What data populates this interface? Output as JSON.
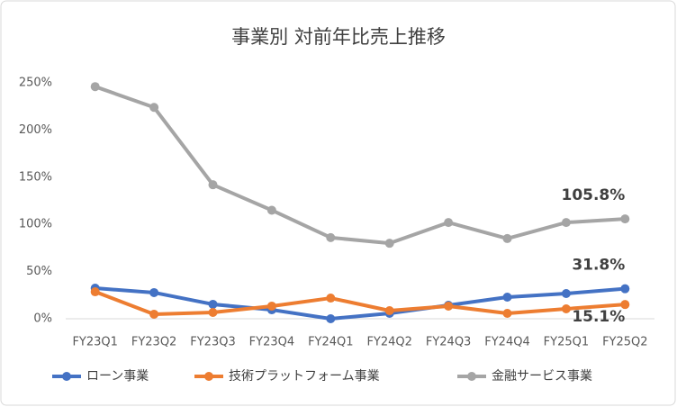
{
  "chart_data": {
    "type": "line",
    "title": "事業別 対前年比売上推移",
    "categories": [
      "FY23Q1",
      "FY23Q2",
      "FY23Q3",
      "FY23Q4",
      "FY24Q1",
      "FY24Q2",
      "FY24Q3",
      "FY24Q4",
      "FY25Q1",
      "FY25Q2"
    ],
    "series": [
      {
        "name": "ローン事業",
        "color": "#4472c4",
        "values": [
          32.4,
          27.7,
          15.3,
          9.5,
          0,
          5.7,
          14.3,
          22.9,
          26.7,
          31.8
        ],
        "value_labels": [
          null,
          null,
          null,
          null,
          null,
          null,
          null,
          null,
          null,
          "31.8%"
        ]
      },
      {
        "name": "技術プラットフォーム事業",
        "color": "#ed7d31",
        "values": [
          28.6,
          4.8,
          6.7,
          13.4,
          21.9,
          8.6,
          13.4,
          5.7,
          10.5,
          15.1
        ],
        "value_labels": [
          null,
          null,
          null,
          null,
          null,
          null,
          null,
          null,
          null,
          "15.1%"
        ]
      },
      {
        "name": "金融サービス事業",
        "color": "#a5a5a5",
        "values": [
          246,
          224,
          142,
          115,
          86,
          80,
          102,
          85,
          102,
          105.8
        ],
        "value_labels": [
          null,
          null,
          null,
          null,
          null,
          null,
          null,
          null,
          null,
          "105.8%"
        ]
      }
    ],
    "ylim": [
      0,
      250
    ],
    "yticks": [
      {
        "value": 0,
        "label": "0%"
      },
      {
        "value": 50,
        "label": "50%"
      },
      {
        "value": 100,
        "label": "100%"
      },
      {
        "value": 150,
        "label": "150%"
      },
      {
        "value": 200,
        "label": "200%"
      },
      {
        "value": 250,
        "label": "250%"
      }
    ],
    "grid": false
  }
}
